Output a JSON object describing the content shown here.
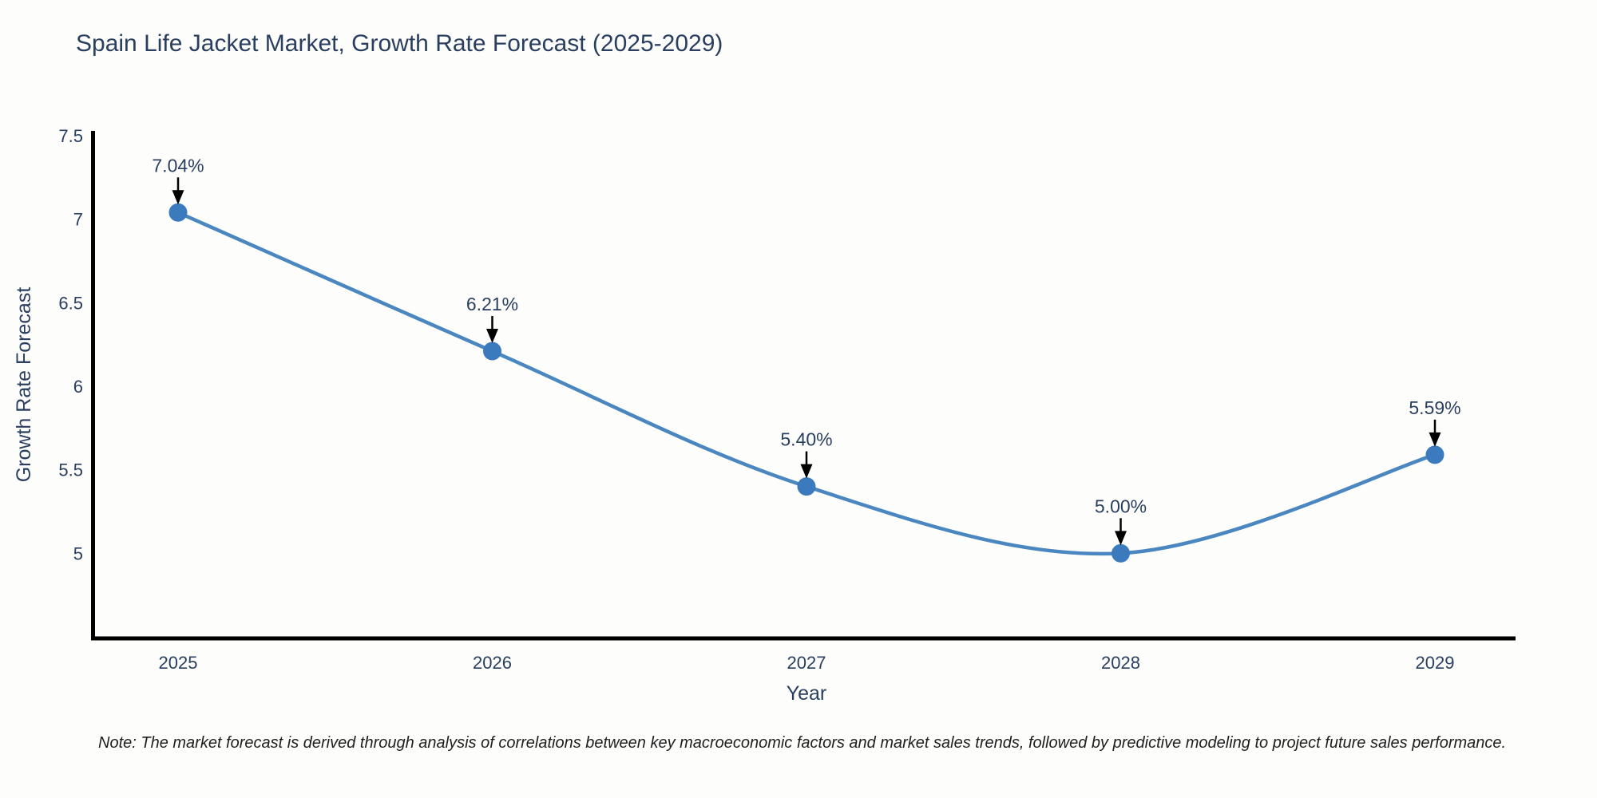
{
  "chart_data": {
    "type": "line",
    "title": "Spain Life Jacket Market, Growth Rate Forecast (2025-2029)",
    "x": [
      "2025",
      "2026",
      "2027",
      "2028",
      "2029"
    ],
    "series": [
      {
        "name": "Growth Rate Forecast",
        "values": [
          7.04,
          6.21,
          5.4,
          5.0,
          5.59
        ],
        "point_labels": [
          "7.04%",
          "6.21%",
          "5.40%",
          "5.00%",
          "5.59%"
        ]
      }
    ],
    "xlabel": "Year",
    "ylabel": "Growth Rate Forecast",
    "ylim": [
      4.5,
      7.5
    ],
    "yticks": [
      "5",
      "5.5",
      "6",
      "6.5",
      "7",
      "7.5"
    ],
    "ytick_values": [
      5,
      5.5,
      6,
      6.5,
      7,
      7.5
    ],
    "grid": false,
    "legend": "none",
    "line_shape": "spline",
    "note": "Note: The market forecast is derived through analysis of correlations between key macroeconomic factors and market sales trends, followed by predictive modeling to project future sales performance.",
    "colors": {
      "line": "#4a86c0",
      "marker": "#3a7abd",
      "axis": "#000000",
      "tick_text": "#2a3f5f",
      "title_text": "#2a3f5f",
      "annotation_text": "#2a3f5f",
      "arrow": "#000000",
      "note_text": "#1f1f1f",
      "background": "#fdfdfc"
    }
  }
}
